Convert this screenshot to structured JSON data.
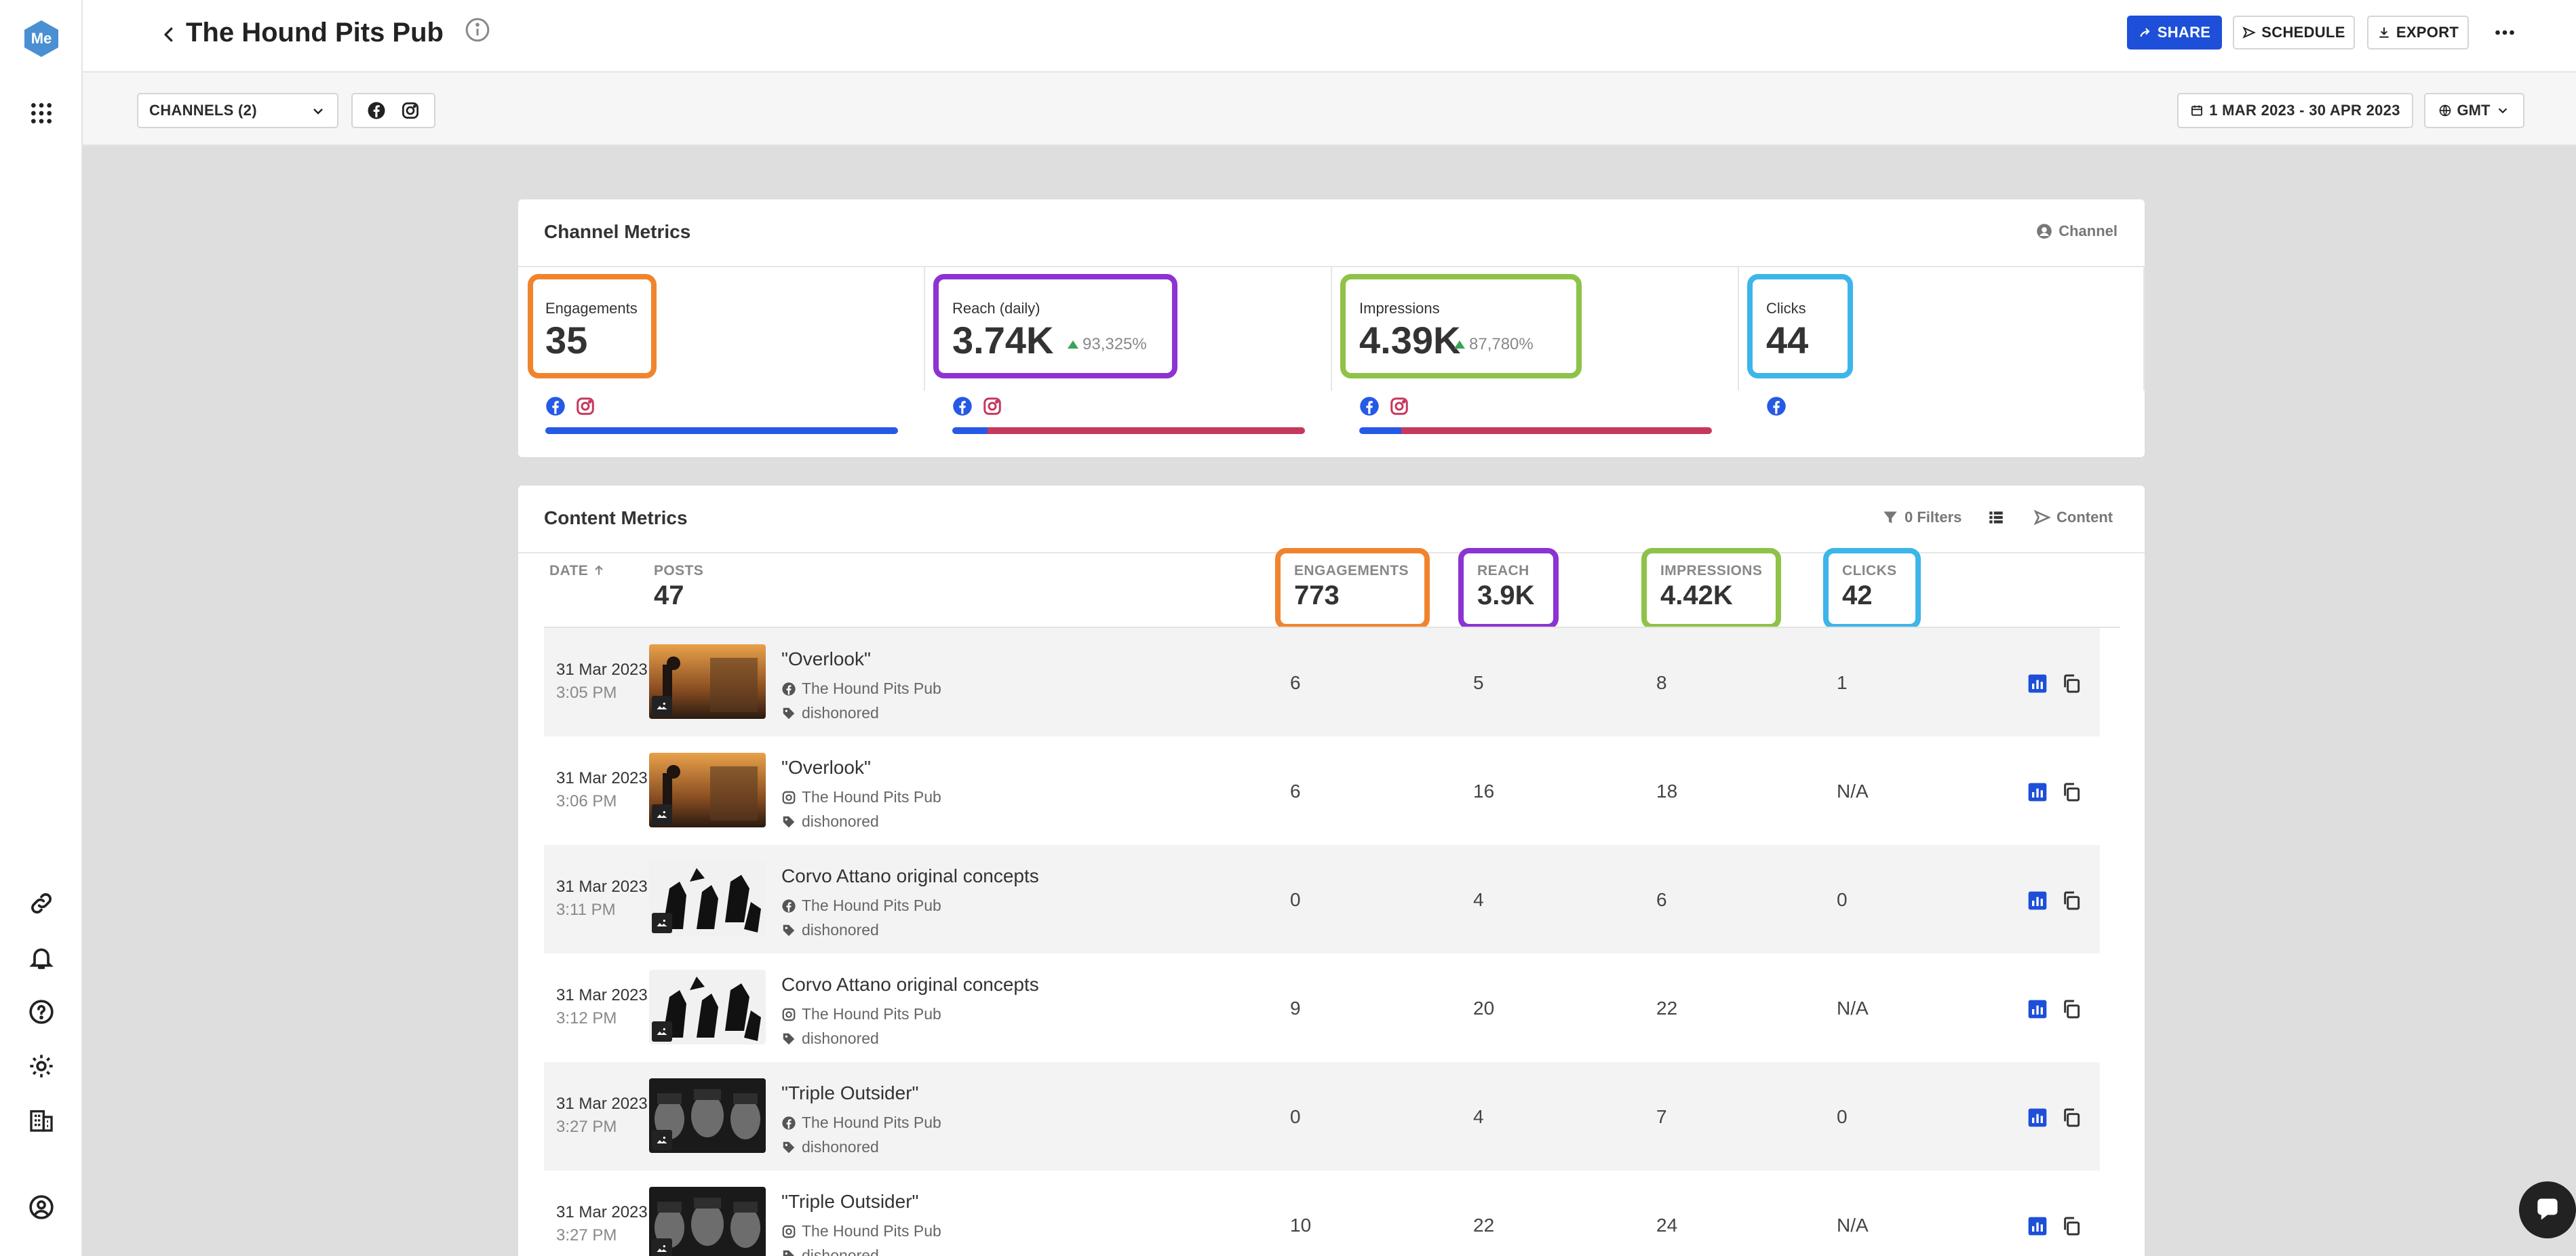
{
  "app": {
    "logo_text": "Me",
    "colors": {
      "brand": "#4a8fd1",
      "accent": "#1d4fd8",
      "facebook": "#2659e6",
      "instagram": "#c5395e",
      "highlight_engagements": "#f0842e",
      "highlight_reach": "#8c33d1",
      "highlight_impressions": "#8fc248",
      "highlight_clicks": "#3db5ea"
    }
  },
  "rail": {
    "icons": [
      "apps-grid-icon",
      "link-icon",
      "bell-icon",
      "help-icon",
      "gear-icon",
      "building-icon",
      "user-circle-icon"
    ]
  },
  "header": {
    "title": "The Hound Pits Pub",
    "share_label": "SHARE",
    "schedule_label": "SCHEDULE",
    "export_label": "EXPORT"
  },
  "filters": {
    "channels_label": "CHANNELS (2)",
    "date_range": "1 MAR 2023 - 30 APR 2023",
    "timezone": "GMT"
  },
  "channel_metrics": {
    "title": "Channel Metrics",
    "action_label": "Channel",
    "metrics": [
      {
        "label": "Engagements",
        "value": "35",
        "delta": "",
        "fb_share": 1.0
      },
      {
        "label": "Reach (daily)",
        "value": "3.74K",
        "delta": "93,325%",
        "fb_share": 0.1
      },
      {
        "label": "Impressions",
        "value": "4.39K",
        "delta": "87,780%",
        "fb_share": 0.12
      },
      {
        "label": "Clicks",
        "value": "44",
        "delta": ""
      }
    ]
  },
  "content_metrics": {
    "title": "Content Metrics",
    "filters_label": "0 Filters",
    "content_label": "Content",
    "columns": {
      "date": "DATE",
      "posts": "POSTS",
      "posts_total": "47",
      "engagements": "ENGAGEMENTS",
      "engagements_total": "773",
      "reach": "REACH",
      "reach_total": "3.9K",
      "impressions": "IMPRESSIONS",
      "impressions_total": "4.42K",
      "clicks": "CLICKS",
      "clicks_total": "42"
    },
    "rows": [
      {
        "date": "31 Mar 2023",
        "time": "3:05 PM",
        "title": "\"Overlook\"",
        "channel": "The Hound Pits Pub",
        "network": "facebook",
        "tag": "dishonored",
        "engagements": "6",
        "reach": "5",
        "impressions": "8",
        "clicks": "1",
        "thumb": "sunset"
      },
      {
        "date": "31 Mar 2023",
        "time": "3:06 PM",
        "title": "\"Overlook\"",
        "channel": "The Hound Pits Pub",
        "network": "instagram",
        "tag": "dishonored",
        "engagements": "6",
        "reach": "16",
        "impressions": "18",
        "clicks": "N/A",
        "thumb": "sunset"
      },
      {
        "date": "31 Mar 2023",
        "time": "3:11 PM",
        "title": "Corvo Attano original concepts",
        "channel": "The Hound Pits Pub",
        "network": "facebook",
        "tag": "dishonored",
        "engagements": "0",
        "reach": "4",
        "impressions": "6",
        "clicks": "0",
        "thumb": "sketch"
      },
      {
        "date": "31 Mar 2023",
        "time": "3:12 PM",
        "title": "Corvo Attano original concepts",
        "channel": "The Hound Pits Pub",
        "network": "instagram",
        "tag": "dishonored",
        "engagements": "9",
        "reach": "20",
        "impressions": "22",
        "clicks": "N/A",
        "thumb": "sketch"
      },
      {
        "date": "31 Mar 2023",
        "time": "3:27 PM",
        "title": "\"Triple Outsider\"",
        "channel": "The Hound Pits Pub",
        "network": "facebook",
        "tag": "dishonored",
        "engagements": "0",
        "reach": "4",
        "impressions": "7",
        "clicks": "0",
        "thumb": "faces"
      },
      {
        "date": "31 Mar 2023",
        "time": "3:27 PM",
        "title": "\"Triple Outsider\"",
        "channel": "The Hound Pits Pub",
        "network": "instagram",
        "tag": "dishonored",
        "engagements": "10",
        "reach": "22",
        "impressions": "24",
        "clicks": "N/A",
        "thumb": "faces"
      }
    ]
  }
}
